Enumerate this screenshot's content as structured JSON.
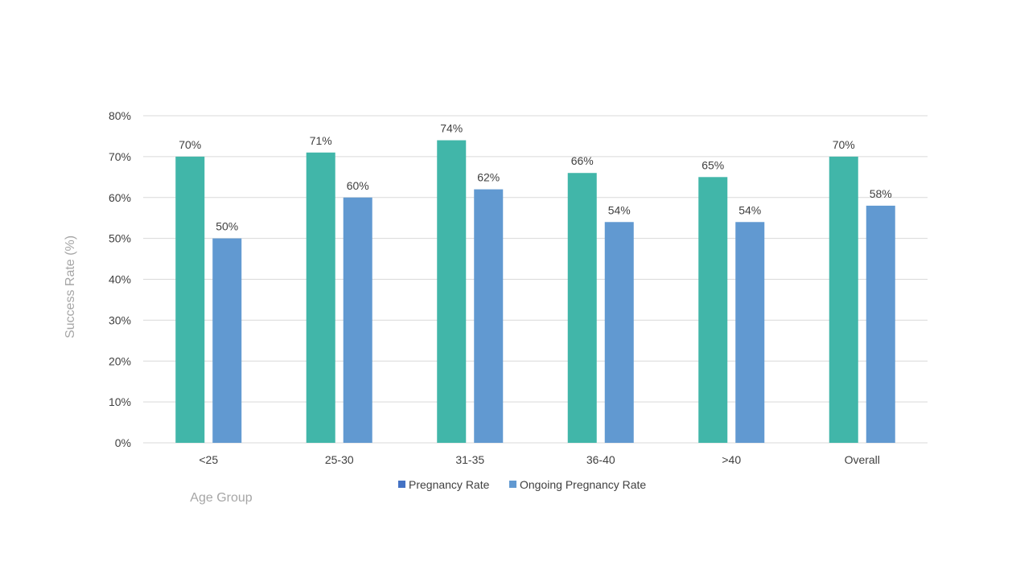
{
  "chart_data": {
    "type": "bar",
    "categories": [
      "<25",
      "25-30",
      "31-35",
      "36-40",
      ">40",
      "Overall"
    ],
    "series": [
      {
        "name": "Pregnancy Rate",
        "values": [
          70,
          71,
          74,
          66,
          65,
          70
        ],
        "value_labels": [
          "70%",
          "71%",
          "74%",
          "66%",
          "65%",
          "70%"
        ],
        "bar_color": "#41b6a9",
        "legend_color": "#4472c4"
      },
      {
        "name": "Ongoing Pregnancy Rate",
        "values": [
          50,
          60,
          62,
          54,
          54,
          58
        ],
        "value_labels": [
          "50%",
          "60%",
          "62%",
          "54%",
          "54%",
          "58%"
        ],
        "bar_color": "#6199d1",
        "legend_color": "#6199d1"
      }
    ],
    "xlabel": "Age Group",
    "ylabel": "Success Rate (%)",
    "ylim": [
      0,
      80
    ],
    "yticks": [
      0,
      10,
      20,
      30,
      40,
      50,
      60,
      70,
      80
    ],
    "ytick_labels": [
      "0%",
      "10%",
      "20%",
      "30%",
      "40%",
      "50%",
      "60%",
      "70%",
      "80%"
    ],
    "grid": true,
    "legend_position": "bottom",
    "gridline_color": "#d9d9d9"
  }
}
